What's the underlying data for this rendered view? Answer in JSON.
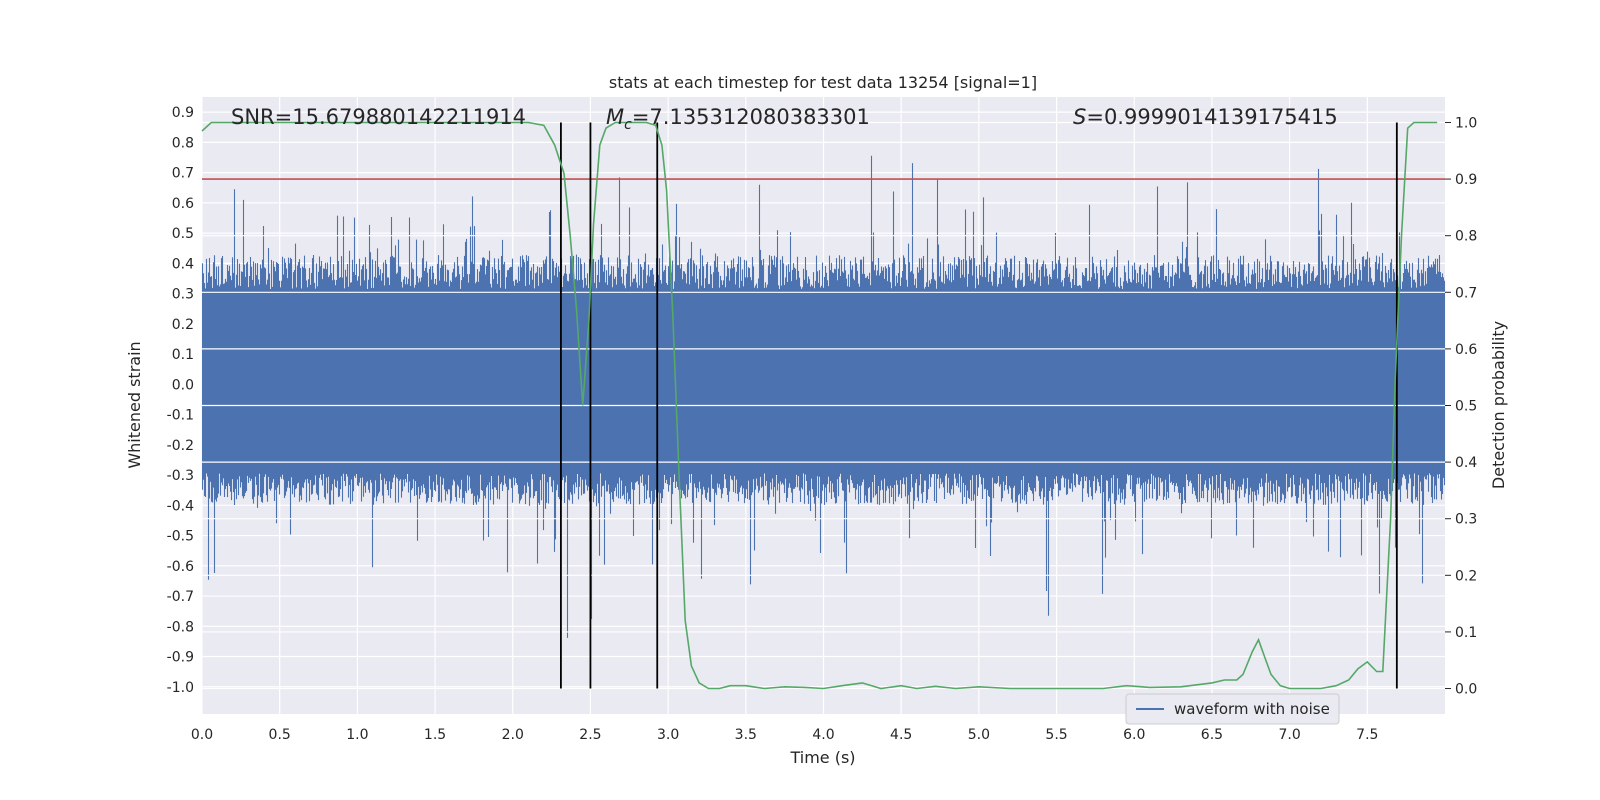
{
  "chart_data": {
    "type": "line",
    "title": "stats at each timestep for test data 13254 [signal=1]",
    "xlabel": "Time (s)",
    "ylabel": "Whitened strain",
    "y2label": "Detection probability",
    "xlim": [
      0.0,
      8.0
    ],
    "ylim": [
      -1.09,
      0.95
    ],
    "y2lim": [
      -0.045,
      1.045
    ],
    "xticks": [
      "0.0",
      "0.5",
      "1.0",
      "1.5",
      "2.0",
      "2.5",
      "3.0",
      "3.5",
      "4.0",
      "4.5",
      "5.0",
      "5.5",
      "6.0",
      "6.5",
      "7.0",
      "7.5"
    ],
    "yticks": [
      "0.9",
      "0.8",
      "0.7",
      "0.6",
      "0.5",
      "0.4",
      "0.3",
      "0.2",
      "0.1",
      "0.0",
      "-0.1",
      "-0.2",
      "-0.3",
      "-0.4",
      "-0.5",
      "-0.6",
      "-0.7",
      "-0.8",
      "-0.9",
      "-1.0"
    ],
    "y2ticks": [
      "1.0",
      "0.9",
      "0.8",
      "0.7",
      "0.6",
      "0.5",
      "0.4",
      "0.3",
      "0.2",
      "0.1",
      "0.0"
    ],
    "annotations": {
      "snr": "SNR=15.679880142211914",
      "mc_symbol": "M",
      "mc_sub": "c",
      "mc_value": "=7.135312080383301",
      "s_symbol": "S",
      "s_value": "=0.9999014139175415"
    },
    "threshold_line": {
      "y2": 0.9,
      "color": "#c44e52"
    },
    "vertical_lines_x": [
      2.31,
      2.5,
      2.93,
      7.69
    ],
    "legend": {
      "label": "waveform with noise",
      "placement": "lower-right"
    },
    "waveform": {
      "name": "waveform with noise",
      "color": "#4c72b0",
      "sample_rate_hz": 2048,
      "approx_upper_envelope": 0.45,
      "approx_lower_envelope": -0.42
    },
    "series": [
      {
        "name": "detection probability",
        "axis": "right",
        "color": "#55a868",
        "x": [
          0.0,
          0.06,
          0.5,
          1.0,
          1.5,
          2.0,
          2.1,
          2.2,
          2.27,
          2.33,
          2.37,
          2.41,
          2.45,
          2.49,
          2.52,
          2.56,
          2.6,
          2.66,
          2.75,
          2.86,
          2.92,
          2.96,
          2.99,
          3.03,
          3.07,
          3.11,
          3.15,
          3.2,
          3.26,
          3.33,
          3.4,
          3.5,
          3.62,
          3.75,
          3.88,
          4.0,
          4.12,
          4.25,
          4.37,
          4.5,
          4.6,
          4.72,
          4.85,
          5.0,
          5.2,
          5.5,
          5.8,
          5.95,
          6.1,
          6.3,
          6.5,
          6.58,
          6.66,
          6.7,
          6.76,
          6.8,
          6.84,
          6.88,
          6.94,
          7.0,
          7.1,
          7.2,
          7.3,
          7.38,
          7.44,
          7.5,
          7.56,
          7.6,
          7.65,
          7.68,
          7.72,
          7.76,
          7.8,
          7.85,
          7.9,
          7.95
        ],
        "values": [
          0.985,
          1.0,
          1.0,
          1.0,
          1.0,
          1.0,
          1.0,
          0.995,
          0.96,
          0.91,
          0.8,
          0.67,
          0.5,
          0.65,
          0.82,
          0.96,
          0.99,
          1.0,
          1.0,
          1.0,
          0.995,
          0.96,
          0.88,
          0.66,
          0.38,
          0.12,
          0.04,
          0.01,
          0.0,
          0.0,
          0.005,
          0.005,
          0.0,
          0.003,
          0.002,
          0.0,
          0.005,
          0.01,
          0.0,
          0.005,
          0.0,
          0.004,
          0.0,
          0.003,
          0.0,
          0.0,
          0.0,
          0.005,
          0.002,
          0.003,
          0.01,
          0.015,
          0.015,
          0.025,
          0.065,
          0.086,
          0.055,
          0.025,
          0.005,
          0.0,
          0.0,
          0.0,
          0.005,
          0.015,
          0.035,
          0.047,
          0.03,
          0.03,
          0.3,
          0.55,
          0.8,
          0.99,
          1.0,
          1.0,
          1.0,
          1.0
        ]
      }
    ]
  }
}
